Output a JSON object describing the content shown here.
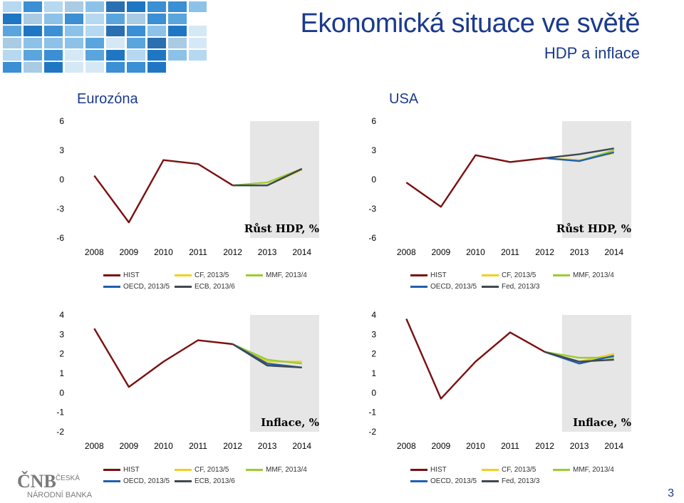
{
  "header": {
    "title": "Ekonomická situace ve světě",
    "subtitle": "HDP a inflace"
  },
  "regions": {
    "left": "Eurozóna",
    "right": "USA"
  },
  "colors": {
    "HIST": "#7a1010",
    "CF": "#f0d020",
    "MMF": "#9acd32",
    "OECD": "#2060b0",
    "ECB": "#404850",
    "Fed": "#404850",
    "shade": "#e6e6e6"
  },
  "chart_data": [
    {
      "id": "ez-gdp",
      "type": "line",
      "region": "Eurozóna",
      "title": "Růst HDP, %",
      "x": [
        "2008",
        "2009",
        "2010",
        "2011",
        "2012",
        "2013",
        "2014"
      ],
      "ylim": [
        -6,
        6
      ],
      "yticks": [
        "6",
        "3",
        "0",
        "-3",
        "-6"
      ],
      "forecast_shade": [
        "2013",
        "2014"
      ],
      "series": [
        {
          "name": "HIST",
          "values": [
            0.4,
            -4.4,
            2.0,
            1.6,
            -0.6,
            null,
            null
          ]
        },
        {
          "name": "CF",
          "values": [
            null,
            null,
            null,
            null,
            -0.6,
            -0.6,
            1.0
          ]
        },
        {
          "name": "MMF",
          "values": [
            null,
            null,
            null,
            null,
            -0.6,
            -0.3,
            1.1
          ]
        },
        {
          "name": "OECD",
          "values": [
            null,
            null,
            null,
            null,
            -0.6,
            -0.6,
            1.1
          ]
        },
        {
          "name": "ECB",
          "values": [
            null,
            null,
            null,
            null,
            -0.6,
            -0.6,
            1.1
          ]
        }
      ],
      "legend": [
        "HIST",
        "CF, 2013/5",
        "MMF, 2013/4",
        "OECD, 2013/5",
        "ECB, 2013/6"
      ]
    },
    {
      "id": "us-gdp",
      "type": "line",
      "region": "USA",
      "title": "Růst HDP, %",
      "x": [
        "2008",
        "2009",
        "2010",
        "2011",
        "2012",
        "2013",
        "2014"
      ],
      "ylim": [
        -6,
        6
      ],
      "yticks": [
        "6",
        "3",
        "0",
        "-3",
        "-6"
      ],
      "forecast_shade": [
        "2013",
        "2014"
      ],
      "series": [
        {
          "name": "HIST",
          "values": [
            -0.3,
            -2.8,
            2.5,
            1.8,
            2.2,
            null,
            null
          ]
        },
        {
          "name": "CF",
          "values": [
            null,
            null,
            null,
            null,
            2.2,
            2.0,
            2.7
          ]
        },
        {
          "name": "MMF",
          "values": [
            null,
            null,
            null,
            null,
            2.2,
            1.9,
            3.0
          ]
        },
        {
          "name": "OECD",
          "values": [
            null,
            null,
            null,
            null,
            2.2,
            1.9,
            2.8
          ]
        },
        {
          "name": "Fed",
          "values": [
            null,
            null,
            null,
            null,
            2.2,
            2.6,
            3.2
          ]
        }
      ],
      "legend": [
        "HIST",
        "CF, 2013/5",
        "MMF, 2013/4",
        "OECD, 2013/5",
        "Fed, 2013/3"
      ]
    },
    {
      "id": "ez-infl",
      "type": "line",
      "region": "Eurozóna",
      "title": "Inflace, %",
      "x": [
        "2008",
        "2009",
        "2010",
        "2011",
        "2012",
        "2013",
        "2014"
      ],
      "ylim": [
        -2,
        4
      ],
      "yticks": [
        "4",
        "3",
        "2",
        "1",
        "0",
        "-1",
        "-2"
      ],
      "forecast_shade": [
        "2013",
        "2014"
      ],
      "series": [
        {
          "name": "HIST",
          "values": [
            3.3,
            0.3,
            1.6,
            2.7,
            2.5,
            null,
            null
          ]
        },
        {
          "name": "CF",
          "values": [
            null,
            null,
            null,
            null,
            2.5,
            1.6,
            1.6
          ]
        },
        {
          "name": "MMF",
          "values": [
            null,
            null,
            null,
            null,
            2.5,
            1.7,
            1.5
          ]
        },
        {
          "name": "OECD",
          "values": [
            null,
            null,
            null,
            null,
            2.5,
            1.5,
            1.3
          ]
        },
        {
          "name": "ECB",
          "values": [
            null,
            null,
            null,
            null,
            2.5,
            1.4,
            1.3
          ]
        }
      ],
      "legend": [
        "HIST",
        "CF, 2013/5",
        "MMF, 2013/4",
        "OECD, 2013/5",
        "ECB, 2013/6"
      ]
    },
    {
      "id": "us-infl",
      "type": "line",
      "region": "USA",
      "title": "Inflace, %",
      "x": [
        "2008",
        "2009",
        "2010",
        "2011",
        "2012",
        "2013",
        "2014"
      ],
      "ylim": [
        -2,
        4
      ],
      "yticks": [
        "4",
        "3",
        "2",
        "1",
        "0",
        "-1",
        "-2"
      ],
      "forecast_shade": [
        "2013",
        "2014"
      ],
      "series": [
        {
          "name": "HIST",
          "values": [
            3.8,
            -0.3,
            1.6,
            3.1,
            2.1,
            null,
            null
          ]
        },
        {
          "name": "CF",
          "values": [
            null,
            null,
            null,
            null,
            2.1,
            1.6,
            2.0
          ]
        },
        {
          "name": "MMF",
          "values": [
            null,
            null,
            null,
            null,
            2.1,
            1.8,
            1.8
          ]
        },
        {
          "name": "OECD",
          "values": [
            null,
            null,
            null,
            null,
            2.1,
            1.5,
            1.9
          ]
        },
        {
          "name": "Fed",
          "values": [
            null,
            null,
            null,
            null,
            2.1,
            1.6,
            1.7
          ]
        }
      ],
      "legend": [
        "HIST",
        "CF, 2013/5",
        "MMF, 2013/4",
        "OECD, 2013/5",
        "Fed, 2013/3"
      ]
    }
  ],
  "footer": {
    "logo_text": "ČNB",
    "logo_sub1": "ČESKÁ",
    "logo_sub2": "NÁRODNÍ BANKA",
    "page_number": "3"
  }
}
